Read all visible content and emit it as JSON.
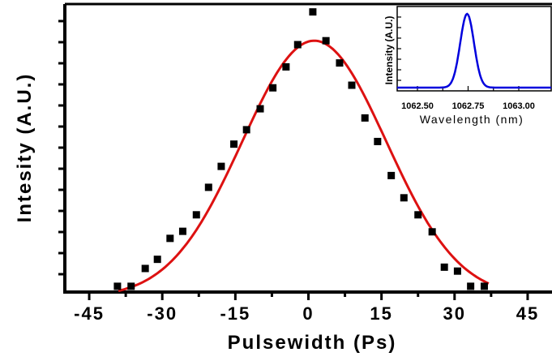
{
  "chart_data": [
    {
      "type": "scatter",
      "title": "",
      "xlabel": "Pulsewidth (Ps)",
      "ylabel": "Intesity (A.U.)",
      "xlim": [
        -50,
        50
      ],
      "ylim": [
        0,
        1.1
      ],
      "xticks": [
        -45,
        -30,
        -15,
        0,
        15,
        30,
        45
      ],
      "grid": false,
      "legend": "none",
      "series": [
        {
          "kind": "points",
          "color": "#000000",
          "x": [
            -39.2,
            -36.4,
            -33.5,
            -31,
            -28.4,
            -25.8,
            -23,
            -20.5,
            -17.9,
            -15.3,
            -12.7,
            -9.9,
            -7.3,
            -4.6,
            -2.2,
            0.9,
            3.6,
            6.4,
            8.9,
            11.6,
            14.2,
            17,
            19.6,
            22.5,
            25.4,
            27.9,
            30.6,
            33.3,
            36.1
          ],
          "y": [
            0.022,
            0.022,
            0.09,
            0.125,
            0.205,
            0.232,
            0.295,
            0.4,
            0.48,
            0.565,
            0.62,
            0.7,
            0.78,
            0.86,
            0.945,
            1.07,
            0.96,
            0.875,
            0.79,
            0.665,
            0.575,
            0.445,
            0.36,
            0.295,
            0.23,
            0.095,
            0.08,
            0.022,
            0.022
          ]
        },
        {
          "kind": "gaussian-fit",
          "color": "#dd1111",
          "x0": 1.2,
          "amplitude": 0.98,
          "sigma": 14.8,
          "baseline": -0.02,
          "xrange": [
            -39,
            37
          ]
        }
      ]
    },
    {
      "type": "line",
      "title": "",
      "xlabel": "Wavelength (nm)",
      "ylabel": "Intensity (A.U.)",
      "xlim": [
        1062.4,
        1063.16
      ],
      "ylim": [
        0,
        1.1
      ],
      "xticks": [
        1062.5,
        1062.75,
        1063.0
      ],
      "xtick_labels": [
        "1062.50",
        "1062.75",
        "1063.00"
      ],
      "series": [
        {
          "color": "#0000dd",
          "center": 1062.745,
          "sigma": 0.034,
          "amplitude": 1.0
        }
      ]
    }
  ]
}
